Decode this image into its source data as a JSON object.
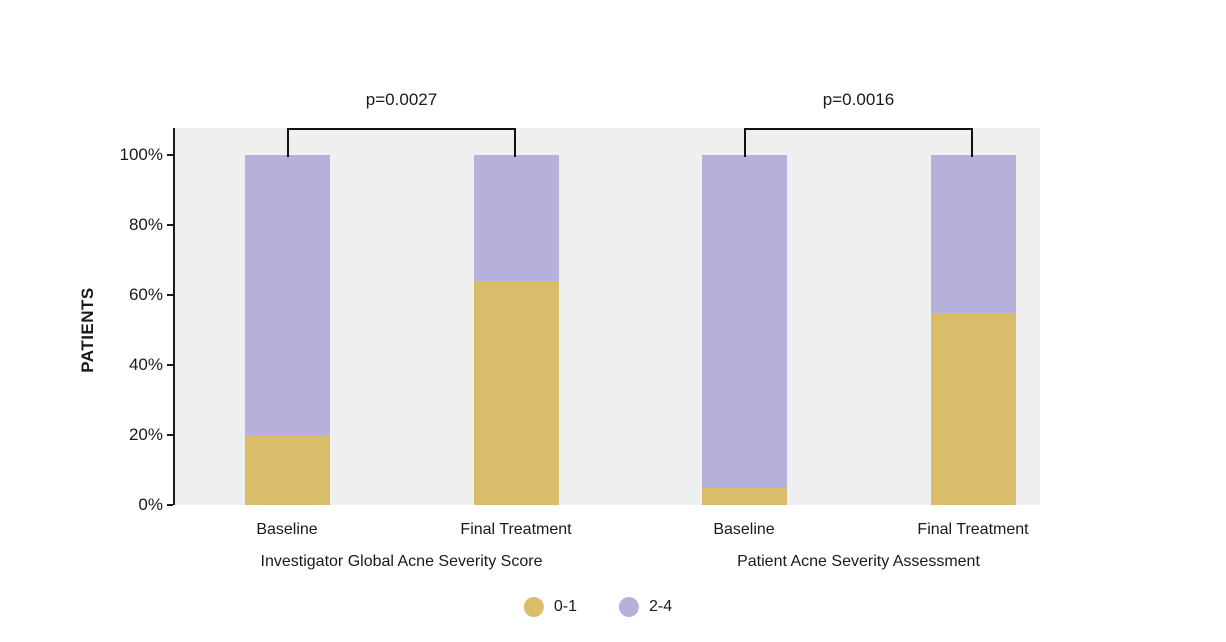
{
  "chart_data": {
    "type": "bar",
    "stacked": true,
    "title": "",
    "ylabel": "PATIENTS",
    "ylim": [
      0,
      100
    ],
    "ytick_values": [
      0,
      20,
      40,
      60,
      80,
      100
    ],
    "ytick_labels": [
      "0%",
      "20%",
      "40%",
      "60%",
      "80%",
      "100%"
    ],
    "unit": "%",
    "grid": false,
    "legend_position": "bottom",
    "plot_background": "#f0efef",
    "axis_color": "#1a1a1a",
    "series": [
      {
        "name": "0-1",
        "color": "#d9bd6b"
      },
      {
        "name": "2-4",
        "color": "#b6b1da"
      }
    ],
    "groups": [
      {
        "label": "Investigator Global Acne Severity Score",
        "p_value": "p=0.0027",
        "bars": [
          {
            "label": "Baseline",
            "values": [
              20,
              80
            ]
          },
          {
            "label": "Final Treatment",
            "values": [
              64,
              36
            ]
          }
        ]
      },
      {
        "label": "Patient Acne Severity Assessment",
        "p_value": "p=0.0016",
        "bars": [
          {
            "label": "Baseline",
            "values": [
              5,
              95
            ]
          },
          {
            "label": "Final Treatment",
            "values": [
              55,
              45
            ]
          }
        ]
      }
    ]
  }
}
